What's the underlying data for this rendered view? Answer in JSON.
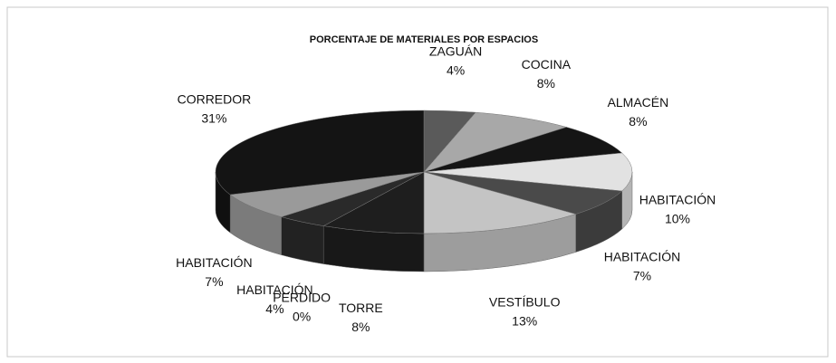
{
  "chart_data": {
    "type": "pie3d",
    "title": "PORCENTAJE DE MATERIALES POR ESPACIOS",
    "categories": [
      "ZAGUÁN",
      "COCINA",
      "ALMACÉN",
      "HABITACIÓN",
      "HABITACIÓN",
      "VESTÍBULO",
      "TORRE",
      "PERDIDO",
      "HABITACIÓN",
      "HABITACIÓN",
      "CORREDOR"
    ],
    "values": [
      4,
      8,
      8,
      10,
      7,
      13,
      8,
      0,
      4,
      7,
      31
    ],
    "value_labels": [
      "4%",
      "8%",
      "8%",
      "10%",
      "7%",
      "13%",
      "8%",
      "0%",
      "4%",
      "7%",
      "31%"
    ],
    "colors": [
      "#5a5a5a",
      "#a8a8a8",
      "#151515",
      "#e2e2e2",
      "#4a4a4a",
      "#c4c4c4",
      "#1e1e1e",
      "#888888",
      "#2a2a2a",
      "#9a9a9a",
      "#141414"
    ]
  }
}
